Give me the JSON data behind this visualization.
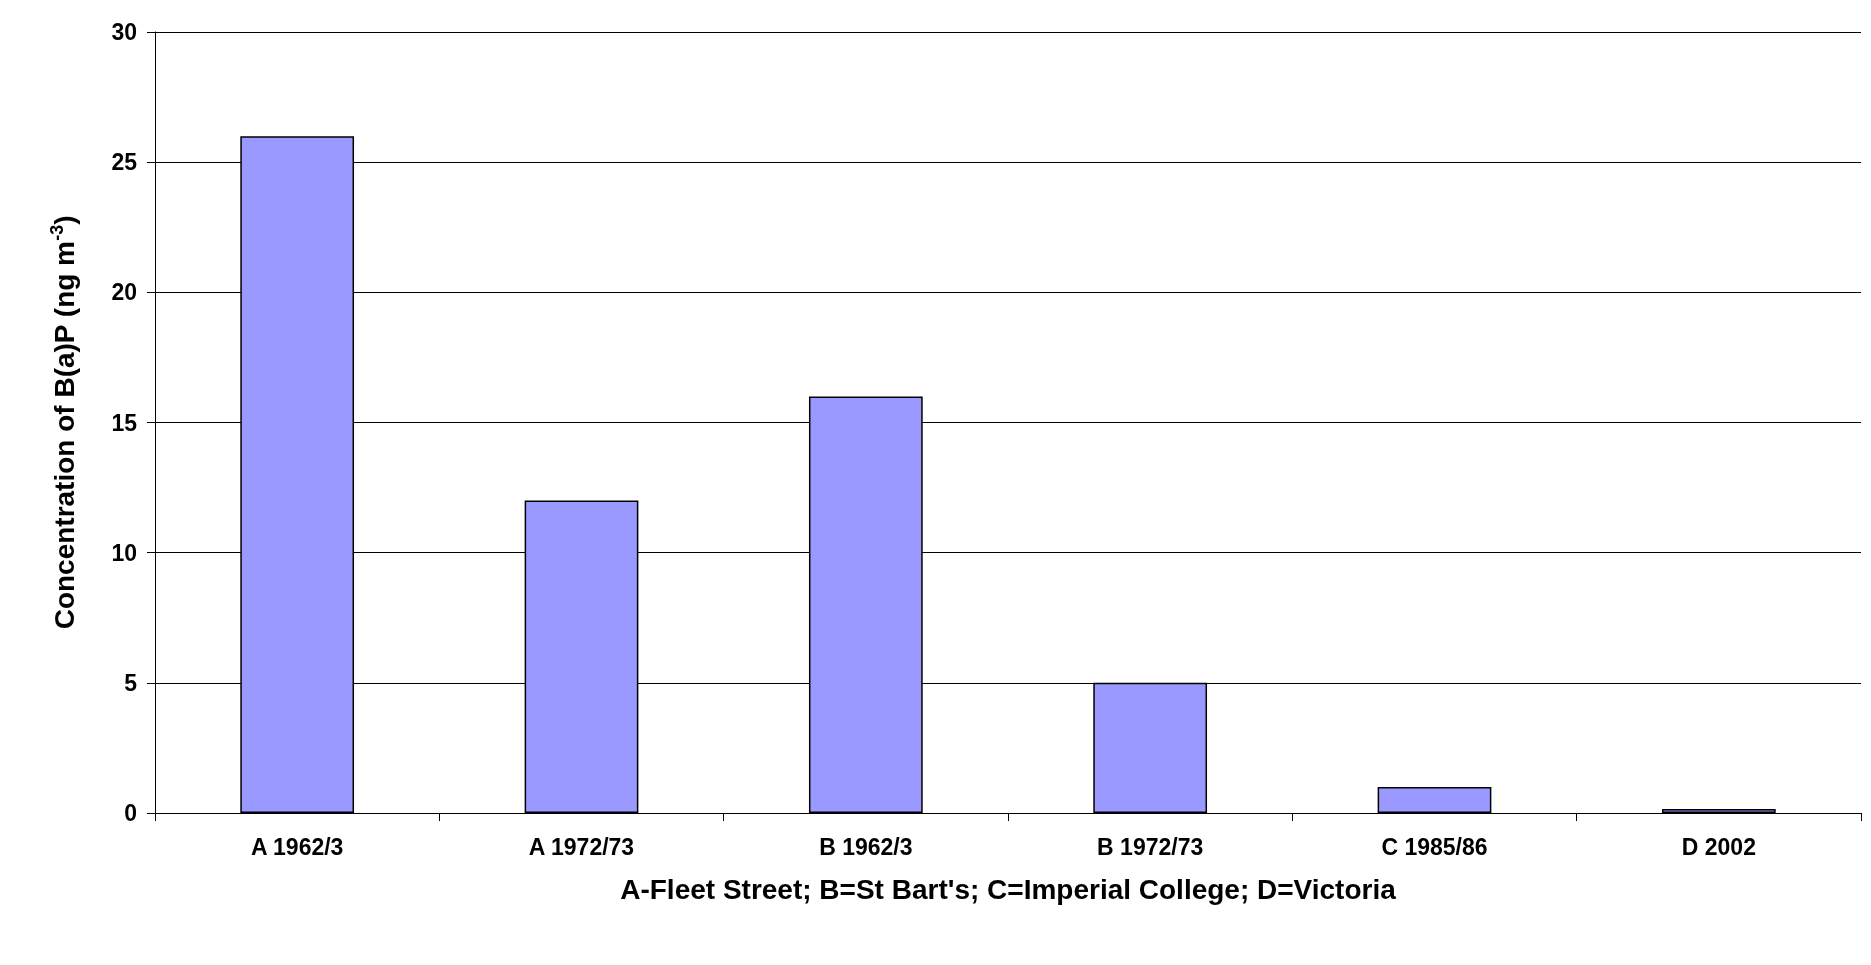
{
  "chart_data": {
    "type": "bar",
    "xlabel": "A-Fleet Street; B=St Bart's; C=Imperial College; D=Victoria",
    "ylabel": "Concentration of B(a)P (ng m$^{-3}$)",
    "categories": [
      "A 1962/3",
      "A 1972/73",
      "B 1962/3",
      "B 1972/73",
      "C 1985/86",
      "D 2002"
    ],
    "values": [
      26,
      12,
      16,
      5,
      1,
      0.15
    ],
    "color": "#9999ff",
    "ylim": [
      0,
      30
    ],
    "yticks": [
      0,
      5,
      10,
      15,
      20,
      25,
      30
    ],
    "grid": "y"
  }
}
